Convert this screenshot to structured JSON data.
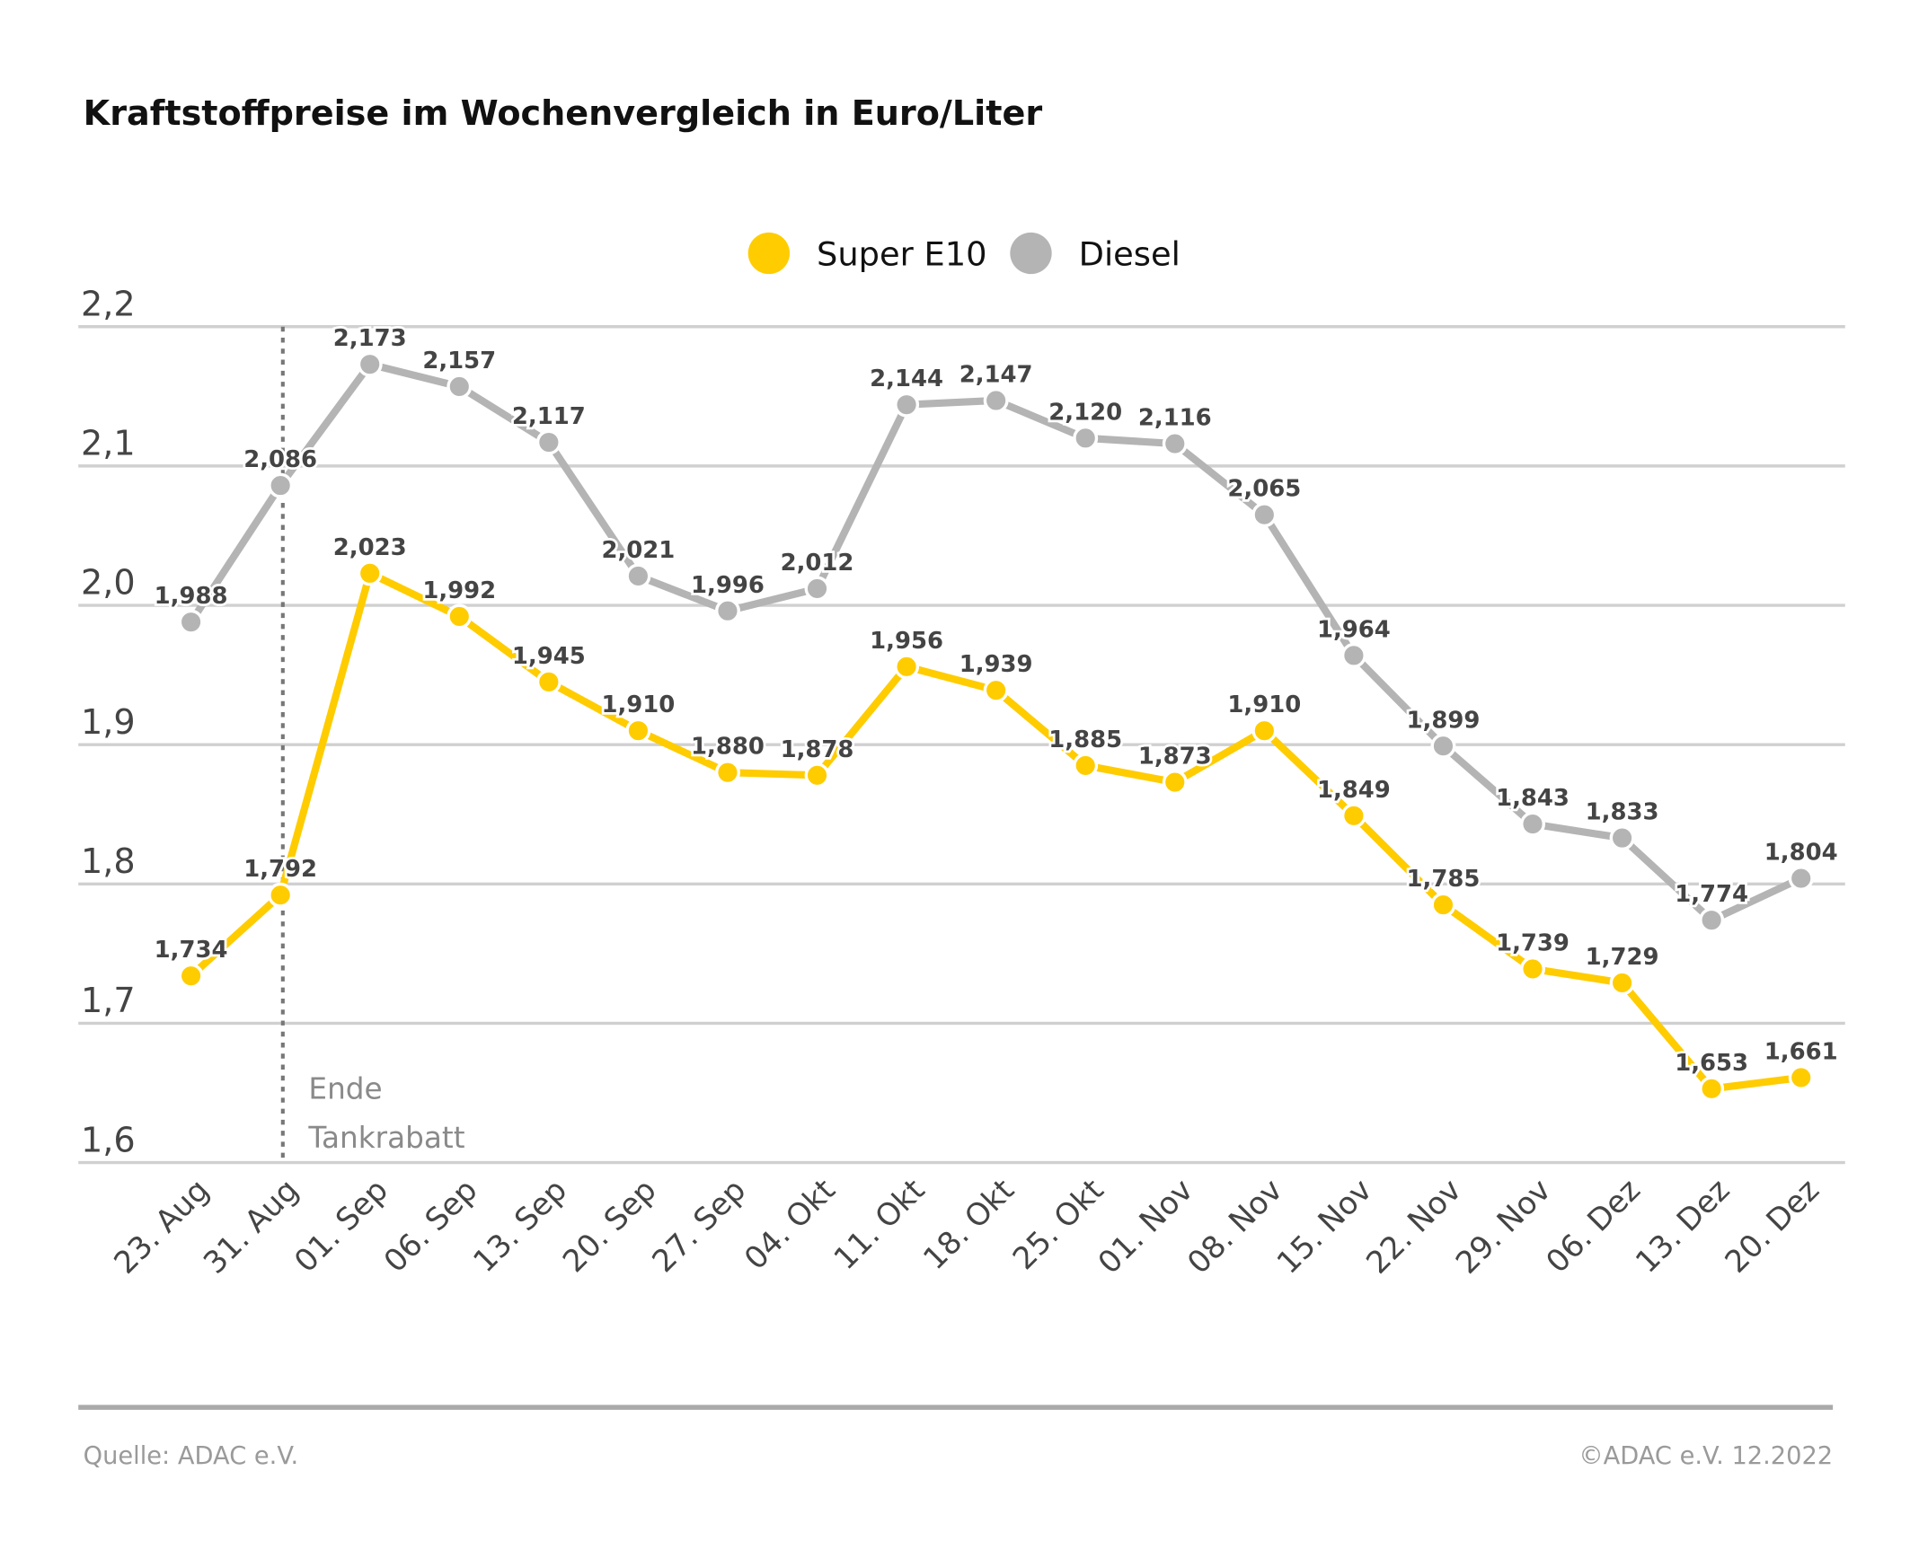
{
  "chart_data": {
    "type": "line",
    "title": "Kraftstoffpreise im Wochenvergleich in Euro/Liter",
    "categories": [
      "23. Aug",
      "31. Aug",
      "01. Sep",
      "06. Sep",
      "13. Sep",
      "20. Sep",
      "27. Sep",
      "04. Okt",
      "11. Okt",
      "18. Okt",
      "25. Okt",
      "01. Nov",
      "08. Nov",
      "15. Nov",
      "22. Nov",
      "29. Nov",
      "06. Dez",
      "13. Dez",
      "20. Dez"
    ],
    "series": [
      {
        "name": "Super E10",
        "color": "#FFCC00",
        "values": [
          1.734,
          1.792,
          2.023,
          1.992,
          1.945,
          1.91,
          1.88,
          1.878,
          1.956,
          1.939,
          1.885,
          1.873,
          1.91,
          1.849,
          1.785,
          1.739,
          1.729,
          1.653,
          1.661
        ],
        "labels": [
          "1,734",
          "1,792",
          "2,023",
          "1,992",
          "1,945",
          "1,910",
          "1,880",
          "1,878",
          "1,956",
          "1,939",
          "1,885",
          "1,873",
          "1,910",
          "1,849",
          "1,785",
          "1,739",
          "1,729",
          "1,653",
          "1,661"
        ]
      },
      {
        "name": "Diesel",
        "color": "#B4B4B4",
        "values": [
          1.988,
          2.086,
          2.173,
          2.157,
          2.117,
          2.021,
          1.996,
          2.012,
          2.144,
          2.147,
          2.12,
          2.116,
          2.065,
          1.964,
          1.899,
          1.843,
          1.833,
          1.774,
          1.804
        ],
        "labels": [
          "1,988",
          "2,086",
          "2,173",
          "2,157",
          "2,117",
          "2,021",
          "1,996",
          "2,012",
          "2,144",
          "2,147",
          "2,120",
          "2,116",
          "2,065",
          "1,964",
          "1,899",
          "1,843",
          "1,833",
          "1,774",
          "1,804"
        ]
      }
    ],
    "ylim": [
      1.6,
      2.2
    ],
    "yticks": [
      2.2,
      2.1,
      2.0,
      1.9,
      1.8,
      1.7,
      1.6
    ],
    "ytick_labels": [
      "2,2",
      "2,1",
      "2,0",
      "1,9",
      "1,8",
      "1,7",
      "1,6"
    ],
    "grid": true,
    "legend": "top-center",
    "annotation": {
      "category": "31. Aug",
      "lines": [
        "Ende",
        "Tankrabatt"
      ]
    }
  },
  "footer": {
    "source": "Quelle: ADAC e.V.",
    "copyright": "©ADAC e.V.  12.2022"
  }
}
